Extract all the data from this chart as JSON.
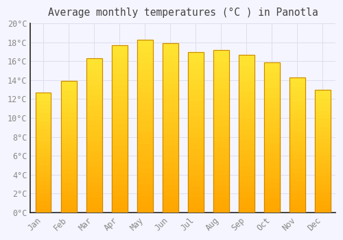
{
  "title": "Average monthly temperatures (°C ) in Panotla",
  "months": [
    "Jan",
    "Feb",
    "Mar",
    "Apr",
    "May",
    "Jun",
    "Jul",
    "Aug",
    "Sep",
    "Oct",
    "Nov",
    "Dec"
  ],
  "values": [
    12.7,
    13.9,
    16.3,
    17.7,
    18.3,
    17.9,
    17.0,
    17.2,
    16.7,
    15.9,
    14.3,
    13.0
  ],
  "bar_color_main": "#FFA500",
  "bar_color_light": "#FFD966",
  "bar_edge_color": "#CC8800",
  "background_color": "#F5F5FF",
  "plot_bg_color": "#F5F5FF",
  "grid_color": "#DDDDEE",
  "tick_label_color": "#888888",
  "title_color": "#444444",
  "spine_color": "#222222",
  "ylim": [
    0,
    20
  ],
  "ytick_labels": [
    "0°C",
    "2°C",
    "4°C",
    "6°C",
    "8°C",
    "10°C",
    "12°C",
    "14°C",
    "16°C",
    "18°C",
    "20°C"
  ],
  "font_family": "monospace",
  "title_fontsize": 10.5,
  "tick_fontsize": 8.5
}
